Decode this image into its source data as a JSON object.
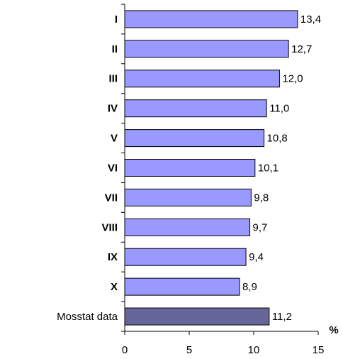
{
  "chart_data": {
    "type": "hbar",
    "categories": [
      "I",
      "II",
      "III",
      "IV",
      "V",
      "VI",
      "VII",
      "VIII",
      "IX",
      "X",
      "Mosstat data"
    ],
    "values": [
      13.4,
      12.7,
      12.0,
      11.0,
      10.8,
      10.1,
      9.8,
      9.7,
      9.4,
      8.9,
      11.2
    ],
    "value_labels": [
      "13,4",
      "12,7",
      "12,0",
      "11,0",
      "10,8",
      "10,1",
      "9,8",
      "9,7",
      "9,4",
      "8,9",
      "11,2"
    ],
    "colors": [
      "#9999ff",
      "#9999ff",
      "#9999ff",
      "#9999ff",
      "#9999ff",
      "#9999ff",
      "#9999ff",
      "#9999ff",
      "#9999ff",
      "#9999ff",
      "#666699"
    ],
    "xlabel": "%",
    "xlim": [
      0,
      15
    ],
    "xticks": [
      0,
      5,
      10,
      15
    ]
  }
}
